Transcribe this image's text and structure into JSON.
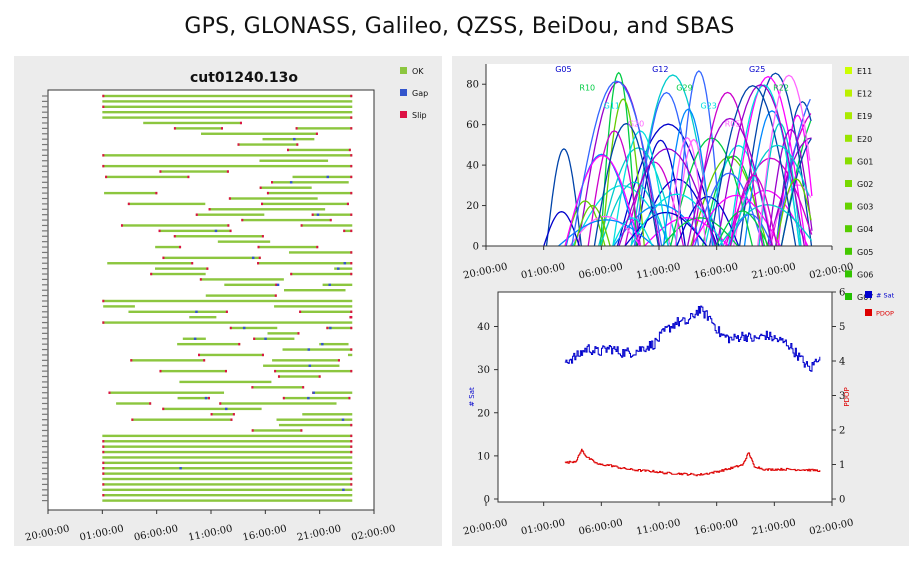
{
  "page": {
    "title": "GPS, GLONASS, Galileo, QZSS, BeiDou, and SBAS"
  },
  "colors": {
    "ok": "#8cc63f",
    "gap": "#3355cc",
    "slip": "#dd1144",
    "nsat": "#0000cc",
    "pdop": "#dd0000"
  },
  "x_ticks": [
    "20:00:00",
    "01:00:00",
    "06:00:00",
    "11:00:00",
    "16:00:00",
    "21:00:00",
    "02:00:00"
  ],
  "chart_data": [
    {
      "type": "bar",
      "subtype": "observation-timeline",
      "title": "cut01240.13o",
      "x_ticks": [
        "20:00:00",
        "01:00:00",
        "06:00:00",
        "11:00:00",
        "16:00:00",
        "21:00:00",
        "02:00:00"
      ],
      "xlim_hours": [
        0,
        30
      ],
      "legend": [
        {
          "label": "OK",
          "color": "#8cc63f"
        },
        {
          "label": "Gap",
          "color": "#3355cc"
        },
        {
          "label": "Slip",
          "color": "#dd1144"
        }
      ],
      "legend_position": "right",
      "satellite_rows": 76
    },
    {
      "type": "line",
      "subtype": "elevation",
      "title": "",
      "y_ticks": [
        "0",
        "20",
        "40",
        "60",
        "80"
      ],
      "ylim": [
        0,
        90
      ],
      "x_ticks": [
        "20:00:00",
        "01:00:00",
        "06:00:00",
        "11:00:00",
        "16:00:00",
        "21:00:00",
        "02:00:00"
      ],
      "legend": [
        {
          "label": "E11",
          "color": "#ccff00"
        },
        {
          "label": "E12",
          "color": "#bbf000"
        },
        {
          "label": "E19",
          "color": "#aaea00"
        },
        {
          "label": "E20",
          "color": "#99e400"
        },
        {
          "label": "G01",
          "color": "#88dd00"
        },
        {
          "label": "G02",
          "color": "#77d800"
        },
        {
          "label": "G03",
          "color": "#66d200"
        },
        {
          "label": "G04",
          "color": "#55cc00"
        },
        {
          "label": "G05",
          "color": "#44c800"
        },
        {
          "label": "G06",
          "color": "#33c400"
        },
        {
          "label": "G07",
          "color": "#22c000"
        }
      ],
      "visible_labels": [
        "G05",
        "R10",
        "G11",
        "G20",
        "G12",
        "G29",
        "G23",
        "R05",
        "G25",
        "R22"
      ]
    },
    {
      "type": "line",
      "subtype": "nsat-pdop",
      "ylabel_left": "# Sat",
      "ylabel_right": "PDOP",
      "y_left_ticks": [
        "0",
        "10",
        "20",
        "30",
        "40"
      ],
      "y_left_lim": [
        0,
        48
      ],
      "y_right_ticks": [
        "0",
        "1",
        "2",
        "3",
        "4",
        "5",
        "6"
      ],
      "y_right_lim": [
        0,
        6
      ],
      "x_ticks": [
        "20:00:00",
        "01:00:00",
        "06:00:00",
        "11:00:00",
        "16:00:00",
        "21:00:00",
        "02:00:00"
      ],
      "legend": [
        {
          "label": "# Sat",
          "color": "#0000cc"
        },
        {
          "label": "PDOP",
          "color": "#dd0000"
        }
      ],
      "series": [
        {
          "name": "# Sat",
          "x_hours": [
            6,
            7,
            8,
            9,
            10,
            11,
            12,
            13,
            14,
            15,
            16,
            17,
            18,
            19,
            20,
            21,
            22,
            23,
            24,
            25,
            26,
            27,
            28,
            29
          ],
          "values": [
            32,
            33,
            35,
            34,
            35,
            34,
            34,
            35,
            36,
            39,
            41,
            41,
            44,
            42,
            38,
            37,
            38,
            37,
            38,
            37,
            36,
            33,
            30,
            34
          ]
        },
        {
          "name": "PDOP",
          "x_hours": [
            6,
            7,
            7.5,
            8,
            9,
            10,
            11,
            12,
            13,
            14,
            15,
            16,
            17,
            18,
            19,
            20,
            21,
            22,
            22.5,
            23,
            24,
            25,
            26,
            27,
            28,
            29
          ],
          "values": [
            1.05,
            1.1,
            1.42,
            1.2,
            1.0,
            0.98,
            0.9,
            0.85,
            0.82,
            0.8,
            0.75,
            0.74,
            0.72,
            0.7,
            0.75,
            0.82,
            0.9,
            1.0,
            1.35,
            0.95,
            0.85,
            0.86,
            0.86,
            0.85,
            0.84,
            0.82
          ]
        }
      ]
    }
  ]
}
